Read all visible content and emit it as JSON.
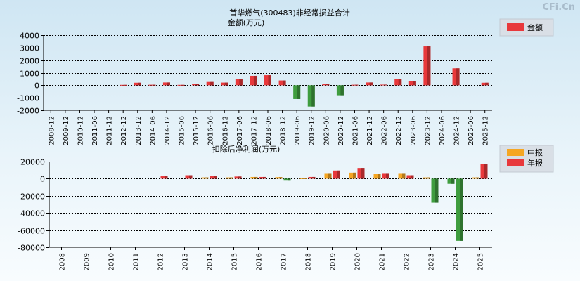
{
  "watermark": "CFi.Cn",
  "colors": {
    "pos": "#e8383b",
    "neg": "#3f9d3f",
    "mid": "#f5a623",
    "year": "#e8383b"
  },
  "chart_data": [
    {
      "type": "bar",
      "title": "首华燃气(300483)非经常损益合计",
      "subtitle": "金额(万元)",
      "legend": {
        "placement": "top-right",
        "entries": [
          {
            "name": "金额",
            "color": "#e8383b"
          }
        ]
      },
      "ylim": [
        -2000,
        4000
      ],
      "yticks": [
        "4000",
        "3000",
        "2000",
        "1000",
        "0",
        "-1000",
        "-2000"
      ],
      "ytick_values": [
        4000,
        3000,
        2000,
        1000,
        0,
        -1000,
        -2000
      ],
      "grid": true,
      "categories": [
        "2008-12",
        "2009-12",
        "2010-12",
        "2011-06",
        "2011-12",
        "2012-12",
        "2013-12",
        "2014-06",
        "2014-12",
        "2015-06",
        "2015-12",
        "2016-06",
        "2016-12",
        "2017-06",
        "2017-12",
        "2018-06",
        "2018-12",
        "2019-06",
        "2019-12",
        "2020-06",
        "2020-12",
        "2021-06",
        "2021-12",
        "2022-06",
        "2022-12",
        "2023-06",
        "2023-12",
        "2024-06",
        "2024-12",
        "2025-06",
        "2025-12"
      ],
      "series": [
        {
          "name": "金额",
          "values": [
            0,
            0,
            0,
            0,
            0,
            30,
            200,
            40,
            220,
            30,
            80,
            260,
            210,
            480,
            750,
            800,
            380,
            -1100,
            -1700,
            100,
            -800,
            40,
            220,
            50,
            500,
            330,
            3100,
            0,
            1350,
            0,
            200
          ]
        }
      ]
    },
    {
      "type": "bar",
      "title": "扣除后净利润(万元)",
      "legend": {
        "placement": "top-right",
        "entries": [
          {
            "name": "中报",
            "color": "#f5a623"
          },
          {
            "name": "年报",
            "color": "#e8383b"
          }
        ]
      },
      "ylim": [
        -80000,
        20000
      ],
      "yticks": [
        "20000",
        "0",
        "-20000",
        "-40000",
        "-60000",
        "-80000"
      ],
      "ytick_values": [
        20000,
        0,
        -20000,
        -40000,
        -60000,
        -80000
      ],
      "grid": true,
      "categories": [
        "2008",
        "2009",
        "2010",
        "2011",
        "2012",
        "2013",
        "2014",
        "2015",
        "2016",
        "2017",
        "2018",
        "2019",
        "2020",
        "2021",
        "2022",
        "2023",
        "2024",
        "2025"
      ],
      "series": [
        {
          "name": "中报",
          "values": [
            0,
            0,
            0,
            0,
            0,
            0,
            1500,
            1500,
            2000,
            1800,
            500,
            6500,
            7000,
            5500,
            6500,
            1500,
            -6000,
            1500
          ]
        },
        {
          "name": "年报",
          "values": [
            0,
            0,
            0,
            0,
            3500,
            4000,
            3500,
            2500,
            2000,
            -1500,
            2000,
            9500,
            12500,
            6500,
            4000,
            -28000,
            -72500,
            17000
          ]
        }
      ]
    }
  ]
}
